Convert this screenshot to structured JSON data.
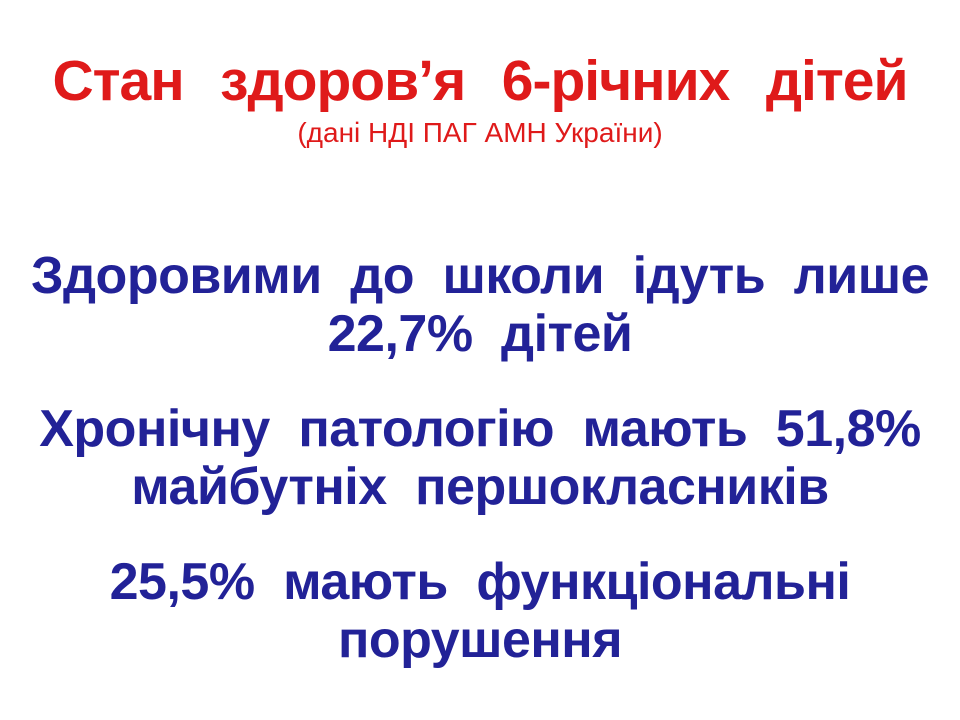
{
  "slide": {
    "title": "Стан здоров’я 6-річних дітей",
    "subtitle": "(дані НДІ ПАГ АМН України)",
    "statements": [
      {
        "name": "healthy-children-share",
        "value": "22,7%",
        "lines": [
          "Здоровими до школи ідуть лише",
          "22,7% дітей"
        ]
      },
      {
        "name": "chronic-pathology-share",
        "value": "51,8%",
        "lines": [
          "Хронічну патологію мають 51,8%",
          "майбутніх першокласників"
        ]
      },
      {
        "name": "functional-disorders-share",
        "value": "25,5%",
        "lines": [
          "25,5% мають функціональні",
          "порушення"
        ]
      }
    ],
    "colors": {
      "title": "#DF1A1A",
      "body": "#222297",
      "background": "#FFFFFF"
    }
  }
}
